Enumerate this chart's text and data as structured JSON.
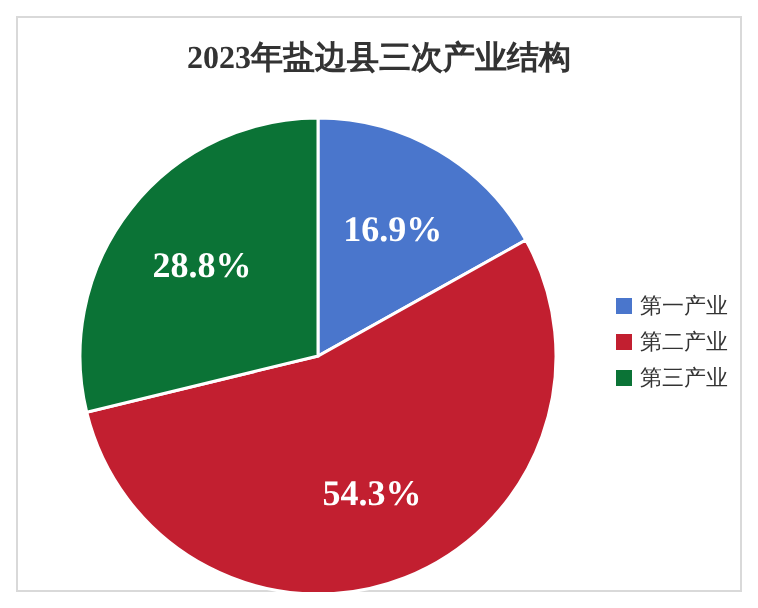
{
  "chart_data": {
    "type": "pie",
    "title": "2023年盐边县三次产业结构",
    "categories": [
      "第一产业",
      "第二产业",
      "第三产业"
    ],
    "values": [
      16.9,
      54.3,
      28.8
    ],
    "value_labels": [
      "16.9%",
      "54.3%",
      "28.8%"
    ],
    "colors": [
      "#4a76cc",
      "#c21f30",
      "#0b7336"
    ],
    "legend": "right"
  }
}
